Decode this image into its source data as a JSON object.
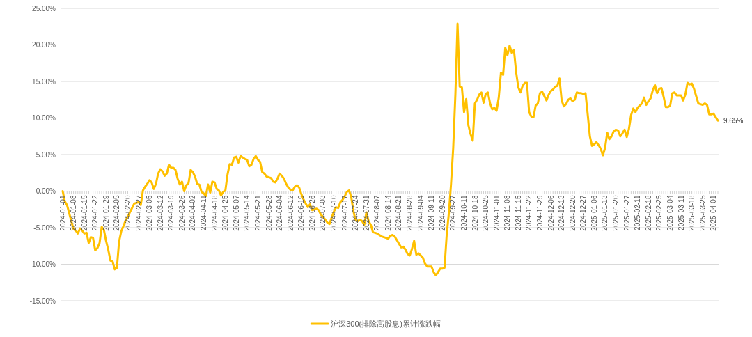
{
  "chart_data": {
    "type": "line",
    "categories": [
      "2024-01-01",
      null,
      null,
      null,
      null,
      "2024-01-08",
      null,
      null,
      null,
      null,
      "2024-01-15",
      null,
      null,
      null,
      null,
      "2024-01-22",
      null,
      null,
      null,
      null,
      "2024-01-29",
      null,
      null,
      null,
      null,
      "2024-02-05",
      null,
      null,
      null,
      null,
      "2024-02-20",
      null,
      null,
      null,
      null,
      "2024-02-27",
      null,
      null,
      null,
      null,
      "2024-03-05",
      null,
      null,
      null,
      null,
      "2024-03-12",
      null,
      null,
      null,
      null,
      "2024-03-19",
      null,
      null,
      null,
      null,
      "2024-03-26",
      null,
      null,
      null,
      null,
      "2024-04-02",
      null,
      null,
      null,
      null,
      "2024-04-11",
      null,
      null,
      null,
      null,
      "2024-04-18",
      null,
      null,
      null,
      null,
      "2024-04-25",
      null,
      null,
      null,
      null,
      "2024-05-07",
      null,
      null,
      null,
      null,
      "2024-05-14",
      null,
      null,
      null,
      null,
      "2024-05-21",
      null,
      null,
      null,
      null,
      "2024-05-28",
      null,
      null,
      null,
      null,
      "2024-06-04",
      null,
      null,
      null,
      null,
      "2024-06-12",
      null,
      null,
      null,
      null,
      "2024-06-19",
      null,
      null,
      null,
      null,
      "2024-06-26",
      null,
      null,
      null,
      null,
      "2024-07-03",
      null,
      null,
      null,
      null,
      "2024-07-10",
      null,
      null,
      null,
      null,
      "2024-07-17",
      null,
      null,
      null,
      null,
      "2024-07-24",
      null,
      null,
      null,
      null,
      "2024-07-31",
      null,
      null,
      null,
      null,
      "2024-08-07",
      null,
      null,
      null,
      null,
      "2024-08-14",
      null,
      null,
      null,
      null,
      "2024-08-21",
      null,
      null,
      null,
      null,
      "2024-08-28",
      null,
      null,
      null,
      null,
      "2024-09-04",
      null,
      null,
      null,
      null,
      "2024-09-11",
      null,
      null,
      null,
      null,
      "2024-09-20",
      null,
      null,
      null,
      null,
      "2024-09-27",
      null,
      null,
      null,
      null,
      "2024-10-11",
      null,
      null,
      null,
      null,
      "2024-10-18",
      null,
      null,
      null,
      null,
      "2024-10-25",
      null,
      null,
      null,
      null,
      "2024-11-01",
      null,
      null,
      null,
      null,
      "2024-11-08",
      null,
      null,
      null,
      null,
      "2024-11-15",
      null,
      null,
      null,
      null,
      "2024-11-22",
      null,
      null,
      null,
      null,
      "2024-11-29",
      null,
      null,
      null,
      null,
      "2024-12-06",
      null,
      null,
      null,
      null,
      "2024-12-13",
      null,
      null,
      null,
      null,
      "2024-12-20",
      null,
      null,
      null,
      null,
      "2024-12-27",
      null,
      null,
      null,
      null,
      "2025-01-06",
      null,
      null,
      null,
      null,
      "2025-01-13",
      null,
      null,
      null,
      null,
      "2025-01-20",
      null,
      null,
      null,
      null,
      "2025-01-27",
      null,
      null,
      null,
      null,
      "2025-02-11",
      null,
      null,
      null,
      null,
      "2025-02-18",
      null,
      null,
      null,
      null,
      "2025-02-25",
      null,
      null,
      null,
      null,
      "2025-03-04",
      null,
      null,
      null,
      null,
      "2025-03-11",
      null,
      null,
      null,
      null,
      "2025-03-18",
      null,
      null,
      null,
      null,
      "2025-03-25",
      null,
      null,
      null,
      null,
      "2025-04-01",
      null,
      null
    ],
    "series": [
      {
        "name": "沪深300(排除高股息)累计涨跌幅",
        "color": "#ffc000",
        "values": [
          0,
          -1.4,
          -1.9,
          -3.0,
          -4.1,
          -5.2,
          -5.4,
          -5.8,
          -5.1,
          -5.4,
          -5.8,
          -5.7,
          -7.1,
          -6.3,
          -6.4,
          -8.1,
          -7.8,
          -7.1,
          -4.9,
          -5.3,
          -6.8,
          -8.0,
          -9.5,
          -9.6,
          -10.7,
          -10.5,
          -6.9,
          -5.5,
          -4.8,
          -4.0,
          -3.5,
          -2.9,
          -2.3,
          -1.7,
          -1.6,
          -1.5,
          -1.9,
          0.1,
          0.6,
          1.0,
          1.5,
          1.2,
          0.3,
          1.0,
          2.4,
          3.0,
          2.7,
          2.1,
          2.4,
          3.6,
          3.2,
          3.2,
          2.9,
          1.7,
          0.9,
          1.3,
          0.0,
          0.8,
          1.1,
          2.9,
          2.6,
          2.0,
          1.0,
          0.9,
          -0.1,
          -0.3,
          -0.7,
          0.9,
          -0.2,
          1.3,
          1.2,
          0.3,
          0.1,
          -0.6,
          -0.1,
          0.1,
          2.3,
          3.7,
          3.6,
          4.6,
          4.7,
          3.9,
          4.8,
          4.6,
          4.4,
          4.3,
          3.4,
          3.6,
          4.4,
          4.8,
          4.3,
          4.0,
          2.6,
          2.4,
          2.0,
          1.9,
          1.8,
          1.3,
          1.2,
          1.7,
          2.4,
          2.1,
          1.7,
          1.0,
          0.5,
          0.2,
          0.1,
          0.6,
          0.8,
          0.5,
          -0.4,
          -1.1,
          -1.7,
          -2.2,
          -1.8,
          -2.6,
          -2.5,
          -2.4,
          -2.6,
          -3.2,
          -3.5,
          -3.9,
          -4.3,
          -4.5,
          -3.6,
          -2.8,
          -2.2,
          -2.3,
          -1.5,
          -1.2,
          -0.7,
          -0.1,
          0.1,
          -0.8,
          -2.7,
          -4.0,
          -4.1,
          -3.9,
          -4.1,
          -4.6,
          -2.9,
          -4.1,
          -4.6,
          -5.6,
          -5.7,
          -5.8,
          -6.0,
          -6.2,
          -6.3,
          -6.4,
          -6.5,
          -6.1,
          -6.0,
          -6.2,
          -6.7,
          -7.2,
          -7.7,
          -7.6,
          -8.0,
          -8.6,
          -8.8,
          -7.9,
          -6.8,
          -8.7,
          -8.5,
          -8.8,
          -9.1,
          -9.9,
          -10.3,
          -10.3,
          -10.3,
          -11.1,
          -11.5,
          -11.1,
          -10.6,
          -10.6,
          -10.5,
          -6.0,
          -3.0,
          1.0,
          5.9,
          13.2,
          22.9,
          14.3,
          14.2,
          10.8,
          12.6,
          9.0,
          7.8,
          6.9,
          12.0,
          12.5,
          13.2,
          13.5,
          12.1,
          13.3,
          13.5,
          12.0,
          11.2,
          11.4,
          11.0,
          12.8,
          16.2,
          15.9,
          19.6,
          18.6,
          19.9,
          18.9,
          19.3,
          16.3,
          14.2,
          13.5,
          14.4,
          14.8,
          14.8,
          10.8,
          10.2,
          10.1,
          11.7,
          12.0,
          13.4,
          13.6,
          13.0,
          12.4,
          13.2,
          13.7,
          13.9,
          14.3,
          14.4,
          15.4,
          12.4,
          11.6,
          11.9,
          12.5,
          12.7,
          12.3,
          12.5,
          13.5,
          13.4,
          13.4,
          13.3,
          13.4,
          10.5,
          7.5,
          6.2,
          6.4,
          6.7,
          6.3,
          5.8,
          4.9,
          5.9,
          8.0,
          7.1,
          7.5,
          8.2,
          8.4,
          8.3,
          7.5,
          7.9,
          8.4,
          7.4,
          8.5,
          10.4,
          11.3,
          10.8,
          11.4,
          11.7,
          12.0,
          12.8,
          11.8,
          12.3,
          12.7,
          13.8,
          14.5,
          13.4,
          14.0,
          14.1,
          12.9,
          11.5,
          11.5,
          11.7,
          13.4,
          13.5,
          13.1,
          13.1,
          13.1,
          12.4,
          13.2,
          14.8,
          14.6,
          14.7,
          14.0,
          13.0,
          12.0,
          11.9,
          11.8,
          12.0,
          11.8,
          10.5,
          10.5,
          10.6,
          10.1,
          9.65
        ],
        "value_labels": [
          null,
          null,
          null,
          null,
          null,
          null,
          null,
          null,
          null,
          null,
          null,
          null,
          null,
          null,
          null,
          null,
          null,
          null,
          null,
          null,
          null,
          null,
          null,
          null,
          null,
          null,
          null,
          null,
          null,
          null,
          null,
          null,
          null,
          null,
          null,
          null,
          null,
          null,
          null,
          null,
          null,
          null,
          null,
          null,
          null,
          null,
          null,
          null,
          null,
          null,
          null,
          null,
          null,
          null,
          null,
          null,
          null,
          null,
          null,
          null,
          null,
          null,
          null,
          null,
          null,
          null,
          null,
          null,
          null,
          null,
          null,
          null,
          null,
          null,
          null,
          null,
          null,
          null,
          null,
          null,
          null,
          null,
          null,
          null,
          null,
          null,
          null,
          null,
          null,
          null,
          null,
          null,
          null,
          null,
          null,
          null,
          null,
          null,
          null,
          null,
          null,
          null,
          null,
          null,
          null,
          null,
          null,
          null,
          null,
          null,
          null,
          null,
          null,
          null,
          null,
          null,
          null,
          null,
          null,
          null,
          null,
          null,
          null,
          null,
          null,
          null,
          null,
          null,
          null,
          null,
          null,
          null,
          null,
          null,
          null,
          null,
          null,
          null,
          null,
          null,
          null,
          null,
          null,
          null,
          null,
          null,
          null,
          null,
          null,
          null,
          null,
          null,
          null,
          null,
          null,
          null,
          null,
          null,
          null,
          null,
          null,
          null,
          null,
          null,
          null,
          null,
          null,
          null,
          null,
          null,
          null,
          null,
          null,
          null,
          null,
          null,
          null,
          null,
          null,
          null,
          null,
          null,
          null,
          null,
          null,
          null,
          null,
          null,
          null,
          null,
          null,
          null,
          null,
          null,
          null,
          null,
          null,
          null,
          null,
          null,
          null,
          null,
          null,
          null,
          null,
          null,
          null,
          null,
          null,
          null,
          null,
          null,
          null,
          null,
          null,
          null,
          null,
          null,
          null,
          null,
          null,
          null,
          null,
          null,
          null,
          null,
          null,
          null,
          null,
          null,
          null,
          null,
          null,
          null,
          null,
          null,
          null,
          null,
          null,
          null,
          null,
          null,
          null,
          null,
          null,
          null,
          null,
          null,
          null,
          null,
          null,
          null,
          null,
          null,
          null,
          null,
          null,
          null,
          null,
          null,
          null,
          null,
          null,
          null,
          null,
          null,
          null,
          null,
          null,
          null,
          null,
          null,
          null,
          null,
          null,
          null,
          null,
          null,
          null,
          null,
          null,
          null,
          null,
          null,
          null,
          null,
          null,
          null,
          null,
          null,
          null,
          null,
          null,
          null,
          null,
          null,
          null,
          null,
          null,
          null,
          null,
          null,
          "9.65%"
        ]
      }
    ],
    "ylim": [
      -15,
      25
    ],
    "yticks": [
      {
        "value": 25,
        "label": "25.00%"
      },
      {
        "value": 20,
        "label": "20.00%"
      },
      {
        "value": 15,
        "label": "15.00%"
      },
      {
        "value": 10,
        "label": "10.00%"
      },
      {
        "value": 5,
        "label": "5.00%"
      },
      {
        "value": 0,
        "label": "0.00%"
      },
      {
        "value": -5,
        "label": "-5.00%"
      },
      {
        "value": -10,
        "label": "-10.00%"
      },
      {
        "value": -15,
        "label": "-15.00%"
      }
    ],
    "grid": "y",
    "legend": "bottom"
  }
}
